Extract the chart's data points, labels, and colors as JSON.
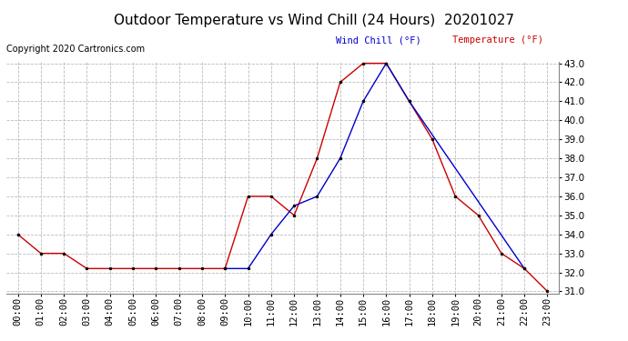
{
  "title": "Outdoor Temperature vs Wind Chill (24 Hours)  20201027",
  "copyright": "Copyright 2020 Cartronics.com",
  "legend_wind_chill": "Wind Chill (°F)",
  "legend_temperature": "Temperature (°F)",
  "hours": [
    "00:00",
    "01:00",
    "02:00",
    "03:00",
    "04:00",
    "05:00",
    "06:00",
    "07:00",
    "08:00",
    "09:00",
    "10:00",
    "11:00",
    "12:00",
    "13:00",
    "14:00",
    "15:00",
    "16:00",
    "17:00",
    "18:00",
    "19:00",
    "20:00",
    "21:00",
    "22:00",
    "23:00"
  ],
  "temperature": [
    34.0,
    33.0,
    33.0,
    32.2,
    32.2,
    32.2,
    32.2,
    32.2,
    32.2,
    32.2,
    36.0,
    36.0,
    35.0,
    38.0,
    42.0,
    43.0,
    43.0,
    41.0,
    39.0,
    36.0,
    35.0,
    33.0,
    32.2,
    31.0
  ],
  "wind_chill": [
    null,
    null,
    null,
    null,
    null,
    null,
    null,
    null,
    null,
    32.2,
    32.2,
    34.0,
    35.5,
    36.0,
    38.0,
    41.0,
    43.0,
    41.0,
    null,
    null,
    null,
    null,
    32.2,
    null
  ],
  "ylim_min": 31.0,
  "ylim_max": 43.0,
  "yticks": [
    31.0,
    32.0,
    33.0,
    34.0,
    35.0,
    36.0,
    37.0,
    38.0,
    39.0,
    40.0,
    41.0,
    42.0,
    43.0
  ],
  "temp_color": "#cc0000",
  "wind_color": "#0000cc",
  "background_color": "#ffffff",
  "grid_color": "#bbbbbb",
  "title_fontsize": 11,
  "tick_fontsize": 7.5
}
